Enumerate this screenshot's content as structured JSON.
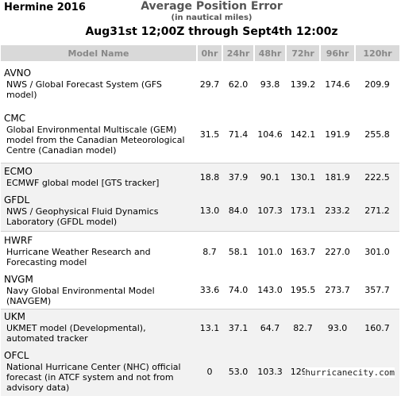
{
  "storm_name": "Hermine 2016",
  "title": "Average Position Error",
  "subtitle": "(in nautical miles)",
  "date_range": "Aug31st 12;00Z through Sept4th 12:00z",
  "columns": [
    "Model Name",
    "0hr",
    "24hr",
    "48hr",
    "72hr",
    "96hr",
    "120hr"
  ],
  "rows": [
    {
      "abbr": "AVNO",
      "name": "NWS / Global Forecast System (GFS model)",
      "values": [
        "29.7",
        "62.0",
        "93.8",
        "139.2",
        "174.6",
        "209.9"
      ]
    },
    {
      "abbr": "CMC",
      "name": "Global Environmental Multiscale (GEM) model from the Canadian Meteorological Centre (Canadian model)",
      "values": [
        "31.5",
        "71.4",
        "104.6",
        "142.1",
        "191.9",
        "255.8"
      ]
    },
    {
      "abbr": "ECMO",
      "name": "ECMWF global model [GTS tracker]",
      "values": [
        "18.8",
        "37.9",
        "90.1",
        "130.1",
        "181.9",
        "222.5"
      ]
    },
    {
      "abbr": "GFDL",
      "name": "NWS / Geophysical Fluid Dynamics Laboratory (GFDL model)",
      "values": [
        "13.0",
        "84.0",
        "107.3",
        "173.1",
        "233.2",
        "271.2"
      ]
    },
    {
      "abbr": "HWRF",
      "name": "Hurricane Weather Research and Forecasting model",
      "values": [
        "8.7",
        "58.1",
        "101.0",
        "163.7",
        "227.0",
        "301.0"
      ]
    },
    {
      "abbr": "NVGM",
      "name": "Navy Global Environmental Model (NAVGEM)",
      "values": [
        "33.6",
        "74.0",
        "143.0",
        "195.5",
        "273.7",
        "357.7"
      ]
    },
    {
      "abbr": "UKM",
      "name": "UKMET model (Developmental), automated tracker",
      "values": [
        "13.1",
        "37.1",
        "64.7",
        "82.7",
        "93.0",
        "160.7"
      ]
    },
    {
      "abbr": "OFCL",
      "name": "National Hurricane Center (NHC) official forecast (in ATCF system and not from advisory data)",
      "values": [
        "0",
        "53.0",
        "103.3",
        "129.9",
        "150.7",
        "136.4"
      ]
    }
  ],
  "watermark": "hurricanecity.com"
}
